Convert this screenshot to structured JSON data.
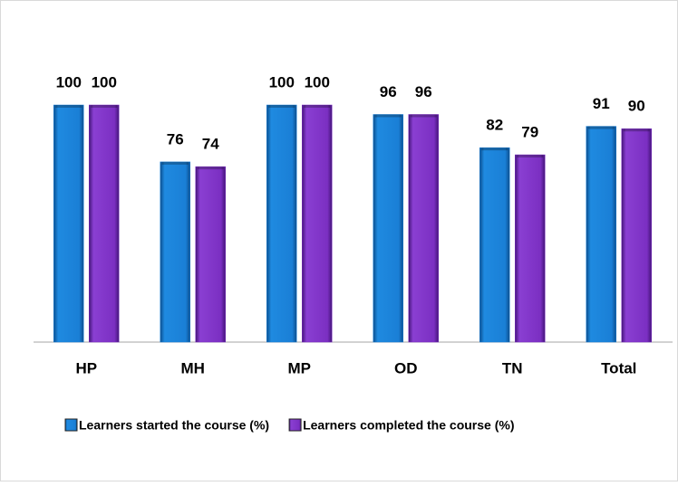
{
  "chart_data": {
    "type": "bar",
    "categories": [
      "HP",
      "MH",
      "MP",
      "OD",
      "TN",
      "Total"
    ],
    "series": [
      {
        "name": "Learners started the course (%)",
        "color": "#1a7fd6",
        "values": [
          100,
          76,
          100,
          96,
          82,
          91
        ]
      },
      {
        "name": "Learners completed the course (%)",
        "color": "#7b2fc2",
        "values": [
          100,
          74,
          100,
          96,
          79,
          90
        ]
      }
    ],
    "ylim": [
      0,
      100
    ],
    "legend": "bottom"
  }
}
